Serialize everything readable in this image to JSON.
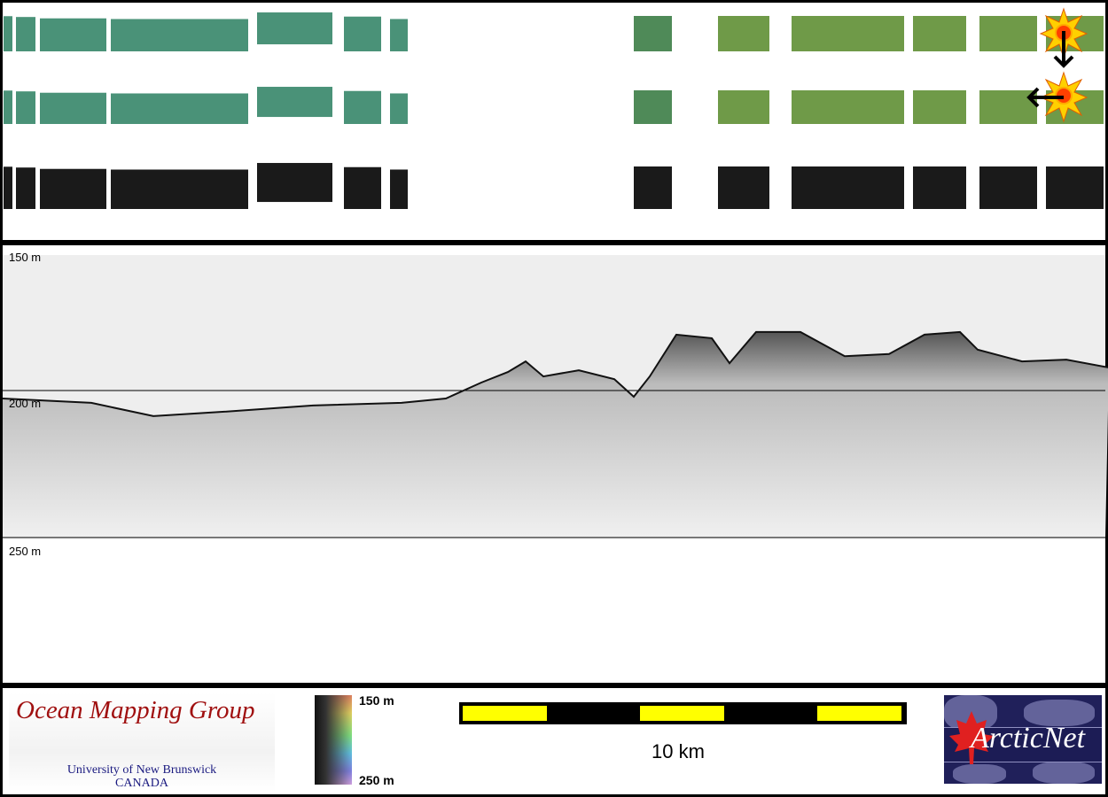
{
  "depth_labels": {
    "top": "150 m",
    "mid": "200 m",
    "bottom": "250 m"
  },
  "colorbar": {
    "min_label": "150 m",
    "max_label": "250 m"
  },
  "scale_bar": {
    "label": "10 km",
    "colors": [
      "#000000",
      "#ffff00"
    ]
  },
  "logos": {
    "omg_title": "Ocean Mapping Group",
    "omg_line1": "University of New Brunswick",
    "omg_line2": "CANADA",
    "arcticnet": "ArcticNet"
  },
  "icons": {
    "sun_down": "sun-illumination-arrow-down",
    "sun_left": "sun-illumination-arrow-left"
  },
  "chart_data": {
    "type": "line",
    "xlabel": "",
    "ylabel": "",
    "y_ticks": [
      "150 m",
      "200 m",
      "250 m"
    ],
    "ylim": [
      150,
      250
    ],
    "y_inverted": true,
    "series": [
      {
        "x_km": [
          0,
          2,
          3.4,
          5,
          7,
          9,
          10,
          10.8,
          11.4,
          11.8,
          12.2,
          13,
          13.8,
          14.24,
          14.6,
          15.2,
          16,
          16.4,
          17,
          18,
          19,
          20,
          20.8,
          21.6,
          22,
          23,
          24,
          24.96
        ],
        "depth_m": [
          202.4,
          203.9,
          208.4,
          206.9,
          204.8,
          203.9,
          202.4,
          197,
          193.4,
          189.8,
          194.9,
          192.8,
          195.8,
          201.8,
          194.9,
          180.7,
          181.9,
          190.4,
          179.8,
          179.8,
          188,
          187.3,
          180.7,
          179.8,
          185.8,
          189.8,
          189.2,
          191.9
        ]
      }
    ],
    "reference_depth_m": 200,
    "colors": {
      "background": "#eeeeee",
      "line": "#111111"
    }
  }
}
